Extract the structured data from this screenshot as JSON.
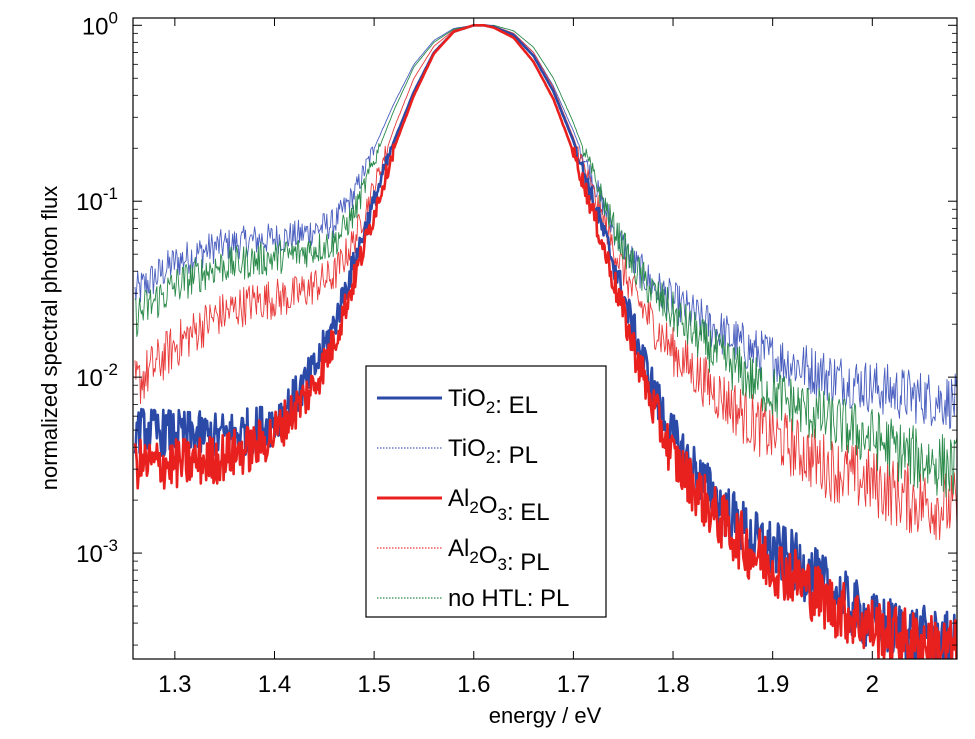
{
  "chart_data": {
    "type": "line",
    "title": "",
    "xlabel": "energy / eV",
    "ylabel": "normalized spectral photon flux",
    "xlim": [
      1.258,
      2.085
    ],
    "ylim": [
      0.00025,
      1.1
    ],
    "yscale": "log",
    "grid": false,
    "legend_position": "bottom-center",
    "x_ticks": [
      1.3,
      1.4,
      1.5,
      1.6,
      1.7,
      1.8,
      1.9,
      2
    ],
    "x_tick_labels": [
      "1.3",
      "1.4",
      "1.5",
      "1.6",
      "1.7",
      "1.8",
      "1.9",
      "2"
    ],
    "y_ticks": [
      {
        "value": 1,
        "base": "10",
        "exp": "0"
      },
      {
        "value": 0.1,
        "base": "10",
        "exp": "-1"
      },
      {
        "value": 0.01,
        "base": "10",
        "exp": "-2"
      },
      {
        "value": 0.001,
        "base": "10",
        "exp": "-3"
      }
    ],
    "series": [
      {
        "label_parts": [
          {
            "t": "TiO"
          },
          {
            "sub": "2"
          },
          {
            "t": ": EL"
          }
        ],
        "color": "#2b4aa8",
        "style": "thick",
        "x": [
          1.26,
          1.3,
          1.34,
          1.38,
          1.4,
          1.42,
          1.44,
          1.46,
          1.48,
          1.5,
          1.52,
          1.54,
          1.56,
          1.58,
          1.6,
          1.61,
          1.62,
          1.64,
          1.66,
          1.68,
          1.7,
          1.72,
          1.74,
          1.76,
          1.78,
          1.8,
          1.84,
          1.88,
          1.92,
          1.96,
          2.0,
          2.04,
          2.085
        ],
        "y": [
          0.005,
          0.0048,
          0.0046,
          0.005,
          0.0056,
          0.0075,
          0.011,
          0.02,
          0.045,
          0.1,
          0.22,
          0.42,
          0.7,
          0.92,
          1.0,
          1.0,
          0.98,
          0.88,
          0.67,
          0.42,
          0.22,
          0.1,
          0.045,
          0.019,
          0.0085,
          0.0045,
          0.0021,
          0.0012,
          0.0009,
          0.0006,
          0.0004,
          0.00035,
          0.0003
        ]
      },
      {
        "label_parts": [
          {
            "t": "TiO"
          },
          {
            "sub": "2"
          },
          {
            "t": ": PL"
          }
        ],
        "color": "#4a5fbf",
        "style": "thin",
        "x": [
          1.26,
          1.3,
          1.34,
          1.38,
          1.42,
          1.46,
          1.48,
          1.5,
          1.52,
          1.54,
          1.56,
          1.58,
          1.6,
          1.62,
          1.64,
          1.66,
          1.68,
          1.7,
          1.72,
          1.74,
          1.76,
          1.78,
          1.8,
          1.84,
          1.88,
          1.92,
          1.96,
          2.0,
          2.04,
          2.085
        ],
        "y": [
          0.03,
          0.045,
          0.055,
          0.06,
          0.063,
          0.075,
          0.11,
          0.2,
          0.36,
          0.6,
          0.82,
          0.96,
          1.0,
          0.99,
          0.9,
          0.7,
          0.45,
          0.25,
          0.13,
          0.07,
          0.045,
          0.033,
          0.027,
          0.019,
          0.014,
          0.012,
          0.01,
          0.0088,
          0.0078,
          0.0072
        ]
      },
      {
        "label_parts": [
          {
            "t": "Al"
          },
          {
            "sub": "2"
          },
          {
            "t": "O"
          },
          {
            "sub": "3"
          },
          {
            "t": ": EL"
          }
        ],
        "color": "#e8201e",
        "style": "thick",
        "x": [
          1.26,
          1.3,
          1.34,
          1.38,
          1.4,
          1.42,
          1.44,
          1.46,
          1.48,
          1.5,
          1.52,
          1.54,
          1.56,
          1.58,
          1.6,
          1.61,
          1.62,
          1.64,
          1.66,
          1.68,
          1.7,
          1.72,
          1.74,
          1.76,
          1.78,
          1.8,
          1.84,
          1.88,
          1.92,
          1.96,
          2.0,
          2.04,
          2.085
        ],
        "y": [
          0.0032,
          0.0032,
          0.0034,
          0.004,
          0.0048,
          0.0065,
          0.009,
          0.016,
          0.036,
          0.085,
          0.2,
          0.4,
          0.69,
          0.92,
          1.0,
          1.0,
          0.97,
          0.85,
          0.62,
          0.38,
          0.19,
          0.085,
          0.036,
          0.015,
          0.0068,
          0.0035,
          0.0017,
          0.001,
          0.00075,
          0.0005,
          0.00038,
          0.00032,
          0.00028
        ]
      },
      {
        "label_parts": [
          {
            "t": "Al"
          },
          {
            "sub": "2"
          },
          {
            "t": "O"
          },
          {
            "sub": "3"
          },
          {
            "t": ": PL"
          }
        ],
        "color": "#e83a3a",
        "style": "thin",
        "x": [
          1.26,
          1.3,
          1.34,
          1.38,
          1.42,
          1.46,
          1.48,
          1.5,
          1.52,
          1.54,
          1.56,
          1.58,
          1.6,
          1.62,
          1.64,
          1.66,
          1.68,
          1.7,
          1.72,
          1.74,
          1.76,
          1.78,
          1.8,
          1.84,
          1.88,
          1.92,
          1.96,
          2.0,
          2.04,
          2.085
        ],
        "y": [
          0.009,
          0.015,
          0.022,
          0.027,
          0.029,
          0.038,
          0.06,
          0.12,
          0.26,
          0.5,
          0.76,
          0.94,
          1.0,
          0.99,
          0.9,
          0.7,
          0.44,
          0.23,
          0.11,
          0.055,
          0.03,
          0.02,
          0.014,
          0.0085,
          0.0055,
          0.004,
          0.003,
          0.0025,
          0.002,
          0.0018
        ]
      },
      {
        "label_parts": [
          {
            "t": "no HTL: PL"
          }
        ],
        "color": "#2a8a4a",
        "style": "thin",
        "x": [
          1.26,
          1.3,
          1.34,
          1.38,
          1.42,
          1.46,
          1.48,
          1.5,
          1.52,
          1.54,
          1.56,
          1.58,
          1.6,
          1.62,
          1.64,
          1.66,
          1.68,
          1.7,
          1.72,
          1.74,
          1.76,
          1.78,
          1.8,
          1.84,
          1.88,
          1.92,
          1.96,
          2.0,
          2.04,
          2.085
        ],
        "y": [
          0.022,
          0.033,
          0.042,
          0.046,
          0.05,
          0.058,
          0.085,
          0.17,
          0.33,
          0.58,
          0.8,
          0.95,
          1.0,
          1.0,
          0.93,
          0.75,
          0.5,
          0.28,
          0.14,
          0.072,
          0.043,
          0.03,
          0.023,
          0.014,
          0.0095,
          0.007,
          0.0055,
          0.0045,
          0.0035,
          0.003
        ]
      }
    ]
  }
}
